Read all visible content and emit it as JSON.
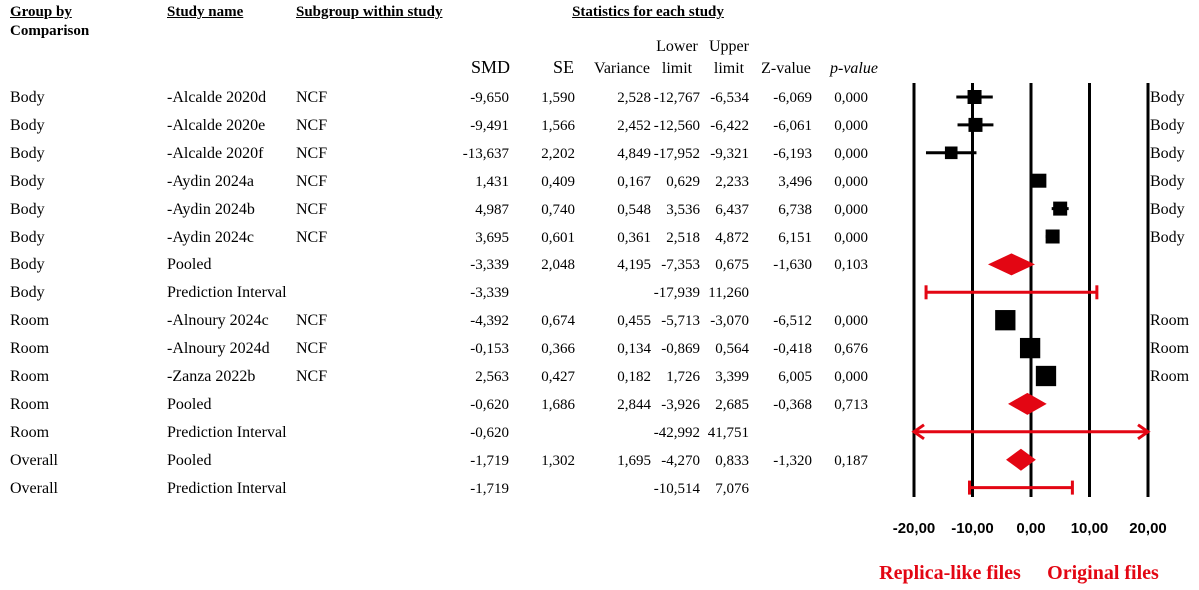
{
  "headers": {
    "group": [
      "Group by",
      "Comparison"
    ],
    "study": "Study name",
    "subgroup": "Subgroup within study",
    "stats": "Statistics for each study",
    "smd": "SMD",
    "se": "SE",
    "variance": "Variance",
    "lower": [
      "Lower",
      "limit"
    ],
    "upper": [
      "Upper",
      "limit"
    ],
    "z": "Z-value",
    "p": "p-value"
  },
  "rows": [
    {
      "group": "Body",
      "study": "-Alcalde 2020d",
      "sub": "NCF",
      "smd": "-9,650",
      "se": "1,590",
      "var": "2,528",
      "lo": "-12,767",
      "hi": "-6,534",
      "z": "-6,069",
      "p": "0,000",
      "right": "Body"
    },
    {
      "group": "Body",
      "study": "-Alcalde 2020e",
      "sub": "NCF",
      "smd": "-9,491",
      "se": "1,566",
      "var": "2,452",
      "lo": "-12,560",
      "hi": "-6,422",
      "z": "-6,061",
      "p": "0,000",
      "right": "Body"
    },
    {
      "group": "Body",
      "study": "-Alcalde 2020f",
      "sub": "NCF",
      "smd": "-13,637",
      "se": "2,202",
      "var": "4,849",
      "lo": "-17,952",
      "hi": "-9,321",
      "z": "-6,193",
      "p": "0,000",
      "right": "Body"
    },
    {
      "group": "Body",
      "study": "-Aydin 2024a",
      "sub": "NCF",
      "smd": "1,431",
      "se": "0,409",
      "var": "0,167",
      "lo": "0,629",
      "hi": "2,233",
      "z": "3,496",
      "p": "0,000",
      "right": "Body"
    },
    {
      "group": "Body",
      "study": "-Aydin 2024b",
      "sub": "NCF",
      "smd": "4,987",
      "se": "0,740",
      "var": "0,548",
      "lo": "3,536",
      "hi": "6,437",
      "z": "6,738",
      "p": "0,000",
      "right": "Body"
    },
    {
      "group": "Body",
      "study": "-Aydin 2024c",
      "sub": "NCF",
      "smd": "3,695",
      "se": "0,601",
      "var": "0,361",
      "lo": "2,518",
      "hi": "4,872",
      "z": "6,151",
      "p": "0,000",
      "right": "Body"
    },
    {
      "group": "Body",
      "study": "Pooled",
      "sub": "",
      "smd": "-3,339",
      "se": "2,048",
      "var": "4,195",
      "lo": "-7,353",
      "hi": "0,675",
      "z": "-1,630",
      "p": "0,103",
      "right": ""
    },
    {
      "group": "Body",
      "study": "Prediction Interval",
      "sub": "",
      "smd": "-3,339",
      "se": "",
      "var": "",
      "lo": "-17,939",
      "hi": "11,260",
      "z": "",
      "p": "",
      "right": ""
    },
    {
      "group": "Room",
      "study": "-Alnoury 2024c",
      "sub": "NCF",
      "smd": "-4,392",
      "se": "0,674",
      "var": "0,455",
      "lo": "-5,713",
      "hi": "-3,070",
      "z": "-6,512",
      "p": "0,000",
      "right": "Room"
    },
    {
      "group": "Room",
      "study": "-Alnoury 2024d",
      "sub": "NCF",
      "smd": "-0,153",
      "se": "0,366",
      "var": "0,134",
      "lo": "-0,869",
      "hi": "0,564",
      "z": "-0,418",
      "p": "0,676",
      "right": "Room"
    },
    {
      "group": "Room",
      "study": "-Zanza 2022b",
      "sub": "NCF",
      "smd": "2,563",
      "se": "0,427",
      "var": "0,182",
      "lo": "1,726",
      "hi": "3,399",
      "z": "6,005",
      "p": "0,000",
      "right": "Room"
    },
    {
      "group": "Room",
      "study": "Pooled",
      "sub": "",
      "smd": "-0,620",
      "se": "1,686",
      "var": "2,844",
      "lo": "-3,926",
      "hi": "2,685",
      "z": "-0,368",
      "p": "0,713",
      "right": ""
    },
    {
      "group": "Room",
      "study": "Prediction Interval",
      "sub": "",
      "smd": "-0,620",
      "se": "",
      "var": "",
      "lo": "-42,992",
      "hi": "41,751",
      "z": "",
      "p": "",
      "right": ""
    },
    {
      "group": "Overall",
      "study": "Pooled",
      "sub": "",
      "smd": "-1,719",
      "se": "1,302",
      "var": "1,695",
      "lo": "-4,270",
      "hi": "0,833",
      "z": "-1,320",
      "p": "0,187",
      "right": ""
    },
    {
      "group": "Overall",
      "study": "Prediction Interval",
      "sub": "",
      "smd": "-1,719",
      "se": "",
      "var": "",
      "lo": "-10,514",
      "hi": "7,076",
      "z": "",
      "p": "",
      "right": ""
    }
  ],
  "chart_data": {
    "type": "forest",
    "xlim": [
      -20,
      20
    ],
    "xticks": [
      -20,
      -10,
      0,
      10,
      20
    ],
    "xtick_labels": [
      "-20,00",
      "-10,00",
      "0,00",
      "10,00",
      "20,00"
    ],
    "studies": [
      {
        "row": 0,
        "kind": "study",
        "est": -9.65,
        "lo": -12.767,
        "hi": -6.534,
        "weight": 1.0
      },
      {
        "row": 1,
        "kind": "study",
        "est": -9.491,
        "lo": -12.56,
        "hi": -6.422,
        "weight": 1.0
      },
      {
        "row": 2,
        "kind": "study",
        "est": -13.637,
        "lo": -17.952,
        "hi": -9.321,
        "weight": 0.9
      },
      {
        "row": 3,
        "kind": "study",
        "est": 1.431,
        "lo": 0.629,
        "hi": 2.233,
        "weight": 1.0
      },
      {
        "row": 4,
        "kind": "study",
        "est": 4.987,
        "lo": 3.536,
        "hi": 6.437,
        "weight": 1.0
      },
      {
        "row": 5,
        "kind": "study",
        "est": 3.695,
        "lo": 2.518,
        "hi": 4.872,
        "weight": 1.0
      },
      {
        "row": 6,
        "kind": "pooled",
        "est": -3.339,
        "lo": -7.353,
        "hi": 0.675
      },
      {
        "row": 7,
        "kind": "prediction",
        "est": -3.339,
        "lo": -17.939,
        "hi": 11.26
      },
      {
        "row": 8,
        "kind": "study",
        "est": -4.392,
        "lo": -5.713,
        "hi": -3.07,
        "weight": 1.45
      },
      {
        "row": 9,
        "kind": "study",
        "est": -0.153,
        "lo": -0.869,
        "hi": 0.564,
        "weight": 1.45
      },
      {
        "row": 10,
        "kind": "study",
        "est": 2.563,
        "lo": 1.726,
        "hi": 3.399,
        "weight": 1.45
      },
      {
        "row": 11,
        "kind": "pooled",
        "est": -0.62,
        "lo": -3.926,
        "hi": 2.685
      },
      {
        "row": 12,
        "kind": "prediction",
        "est": -0.62,
        "lo": -42.992,
        "hi": 41.751
      },
      {
        "row": 13,
        "kind": "pooled",
        "est": -1.719,
        "lo": -4.27,
        "hi": 0.833
      },
      {
        "row": 14,
        "kind": "prediction",
        "est": -1.719,
        "lo": -10.514,
        "hi": 7.076
      }
    ],
    "left_label": "Replica-like files",
    "right_label": "Original files",
    "colors": {
      "study": "#000000",
      "pooled": "#e30613"
    }
  }
}
